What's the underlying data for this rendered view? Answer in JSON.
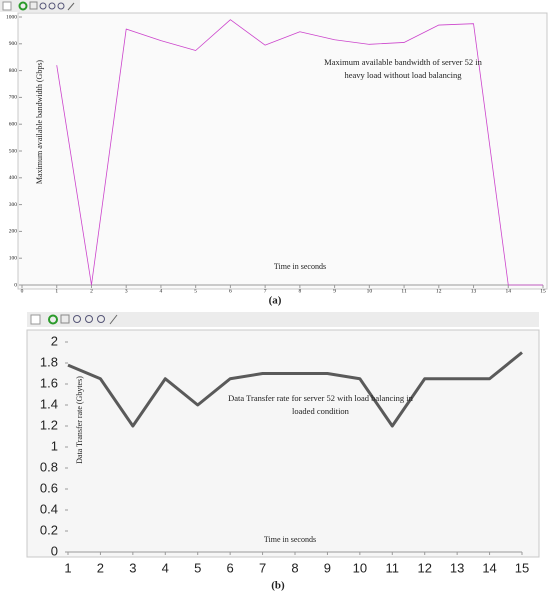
{
  "chart_data": [
    {
      "type": "line",
      "caption": "(a)",
      "annotation": "Maximum available bandwidth of server 52 in heavy load without load balancing",
      "xlabel": "Time in seconds",
      "ylabel": "Maximum available bandwidth (Gbps)",
      "x": [
        1,
        2,
        3,
        4,
        5,
        6,
        7,
        8,
        9,
        10,
        11,
        12,
        13,
        14,
        15
      ],
      "values": [
        820,
        0,
        955,
        912,
        875,
        990,
        895,
        945,
        915,
        898,
        905,
        970,
        975,
        0,
        0
      ],
      "color": "#cc44cc",
      "xlim": [
        0,
        15
      ],
      "ylim": [
        0,
        1000
      ],
      "xticks": [
        0,
        1,
        2,
        3,
        4,
        5,
        6,
        7,
        8,
        9,
        10,
        11,
        12,
        13,
        14,
        15
      ],
      "yticks": [
        0,
        100,
        200,
        300,
        400,
        500,
        600,
        700,
        800,
        900,
        1000
      ]
    },
    {
      "type": "line",
      "caption": "(b)",
      "annotation": "Data Transfer rate for server 52 with load balancing in loaded condition",
      "xlabel": "Time in seconds",
      "ylabel": "Data Transfer rate (Gbytes)",
      "x": [
        1,
        2,
        3,
        4,
        5,
        6,
        7,
        8,
        9,
        10,
        11,
        12,
        13,
        14,
        15
      ],
      "values": [
        1.78,
        1.65,
        1.2,
        1.65,
        1.4,
        1.65,
        1.7,
        1.7,
        1.7,
        1.65,
        1.2,
        1.65,
        1.65,
        1.65,
        1.9
      ],
      "color": "#5a5a5a",
      "xlim": [
        1,
        15
      ],
      "ylim": [
        0,
        2
      ],
      "xticks": [
        1,
        2,
        3,
        4,
        5,
        6,
        7,
        8,
        9,
        10,
        11,
        12,
        13,
        14,
        15
      ],
      "yticks": [
        0,
        0.2,
        0.4,
        0.6,
        0.8,
        1,
        1.2,
        1.4,
        1.6,
        1.8,
        2
      ]
    }
  ]
}
